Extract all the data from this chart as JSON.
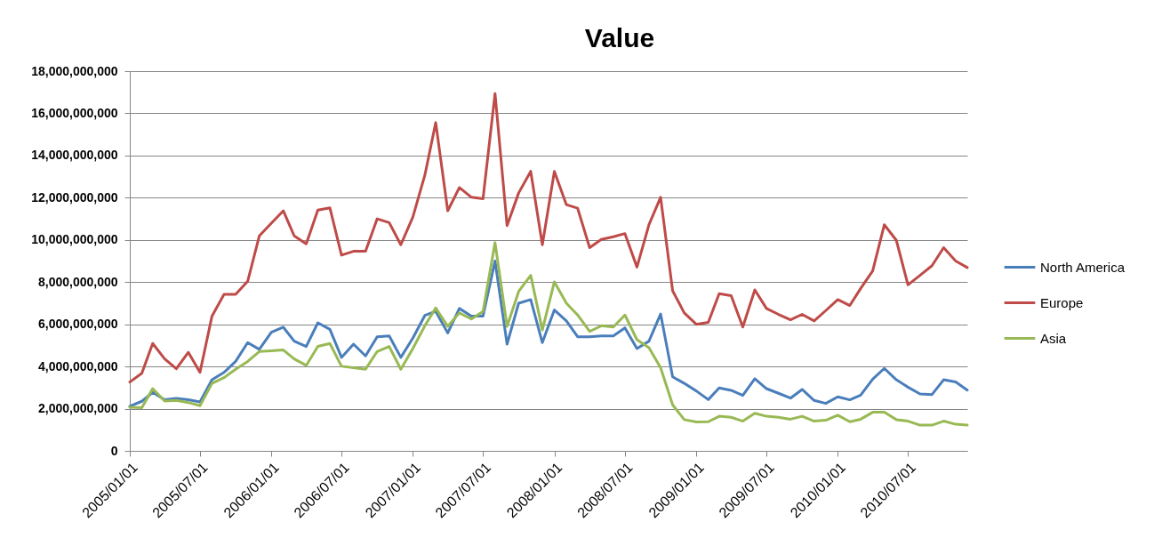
{
  "chart_data": {
    "type": "line",
    "title": "Value",
    "x": [
      "2005-01",
      "2005-02",
      "2005-03",
      "2005-04",
      "2005-05",
      "2005-06",
      "2005-07",
      "2005-08",
      "2005-09",
      "2005-10",
      "2005-11",
      "2005-12",
      "2006-01",
      "2006-02",
      "2006-03",
      "2006-04",
      "2006-05",
      "2006-06",
      "2006-07",
      "2006-08",
      "2006-09",
      "2006-10",
      "2006-11",
      "2006-12",
      "2007-01",
      "2007-02",
      "2007-03",
      "2007-04",
      "2007-05",
      "2007-06",
      "2007-07",
      "2007-08",
      "2007-09",
      "2007-10",
      "2007-11",
      "2007-12",
      "2008-01",
      "2008-02",
      "2008-03",
      "2008-04",
      "2008-05",
      "2008-06",
      "2008-07",
      "2008-08",
      "2008-09",
      "2008-10",
      "2008-11",
      "2008-12",
      "2009-01",
      "2009-02",
      "2009-03",
      "2009-04",
      "2009-05",
      "2009-06",
      "2009-07",
      "2009-08",
      "2009-09",
      "2009-10",
      "2009-11",
      "2009-12",
      "2010-01",
      "2010-02",
      "2010-03",
      "2010-04",
      "2010-05",
      "2010-06",
      "2010-07",
      "2010-08",
      "2010-09",
      "2010-10",
      "2010-11",
      "2010-12"
    ],
    "xlim": [
      "2005-01-01",
      "2010-12-01"
    ],
    "xticks": [
      {
        "value": "2005-01-01",
        "label": "2005/01/01"
      },
      {
        "value": "2005-07-01",
        "label": "2005/07/01"
      },
      {
        "value": "2006-01-01",
        "label": "2006/01/01"
      },
      {
        "value": "2006-07-01",
        "label": "2006/07/01"
      },
      {
        "value": "2007-01-01",
        "label": "2007/01/01"
      },
      {
        "value": "2007-07-01",
        "label": "2007/07/01"
      },
      {
        "value": "2008-01-01",
        "label": "2008/01/01"
      },
      {
        "value": "2008-07-01",
        "label": "2008/07/01"
      },
      {
        "value": "2009-01-01",
        "label": "2009/01/01"
      },
      {
        "value": "2009-07-01",
        "label": "2009/07/01"
      },
      {
        "value": "2010-01-01",
        "label": "2010/01/01"
      },
      {
        "value": "2010-07-01",
        "label": "2010/07/01"
      }
    ],
    "ylim": [
      0,
      18000000000
    ],
    "yticks": [
      0,
      {
        "value": 2000000000,
        "label": "2,000,000,000"
      },
      {
        "value": 4000000000,
        "label": "4,000,000,000"
      },
      {
        "value": 6000000000,
        "label": "6,000,000,000"
      },
      {
        "value": 8000000000,
        "label": "8,000,000,000"
      },
      {
        "value": 10000000000,
        "label": "10,000,000,000"
      },
      {
        "value": 12000000000,
        "label": "12,000,000,000"
      },
      {
        "value": 14000000000,
        "label": "14,000,000,000"
      },
      {
        "value": 16000000000,
        "label": "16,000,000,000"
      },
      {
        "value": 18000000000,
        "label": "18,000,000,000"
      }
    ],
    "grid": "y",
    "legend": "right",
    "series": [
      {
        "name": "North America",
        "color": "#4a7ebb",
        "values": [
          2110000000.0,
          2350000000.0,
          2770000000.0,
          2420000000.0,
          2490000000.0,
          2420000000.0,
          2320000000.0,
          3370000000.0,
          3720000000.0,
          4240000000.0,
          5130000000.0,
          4810000000.0,
          5620000000.0,
          5860000000.0,
          5200000000.0,
          4950000000.0,
          6070000000.0,
          5760000000.0,
          4430000000.0,
          5060000000.0,
          4500000000.0,
          5410000000.0,
          5450000000.0,
          4430000000.0,
          5340000000.0,
          6420000000.0,
          6610000000.0,
          5590000000.0,
          6750000000.0,
          6390000000.0,
          6390000000.0,
          9000000000.0,
          5060000000.0,
          7000000000.0,
          7170000000.0,
          5130000000.0,
          6680000000.0,
          6160000000.0,
          5410000000.0,
          5410000000.0,
          5450000000.0,
          5450000000.0,
          5830000000.0,
          4850000000.0,
          5200000000.0,
          6490000000.0,
          3510000000.0,
          3200000000.0,
          2840000000.0,
          2430000000.0,
          2980000000.0,
          2870000000.0,
          2630000000.0,
          3420000000.0,
          2950000000.0,
          2730000000.0,
          2500000000.0,
          2910000000.0,
          2390000000.0,
          2250000000.0,
          2560000000.0,
          2420000000.0,
          2640000000.0,
          3400000000.0,
          3910000000.0,
          3370000000.0,
          3020000000.0,
          2700000000.0,
          2670000000.0,
          3370000000.0,
          3270000000.0,
          2880000000.0
        ]
      },
      {
        "name": "Europe",
        "color": "#be4b48",
        "values": [
          3260000000.0,
          3680000000.0,
          5090000000.0,
          4360000000.0,
          3890000000.0,
          4670000000.0,
          3720000000.0,
          6390000000.0,
          7420000000.0,
          7420000000.0,
          8040000000.0,
          10190000000.0,
          10790000000.0,
          11380000000.0,
          10190000000.0,
          9810000000.0,
          11410000000.0,
          11520000000.0,
          9280000000.0,
          9460000000.0,
          9460000000.0,
          11000000000.0,
          10820000000.0,
          9770000000.0,
          11080000000.0,
          13070000000.0,
          15560000000.0,
          11380000000.0,
          12480000000.0,
          12020000000.0,
          11950000000.0,
          16940000000.0,
          10680000000.0,
          12230000000.0,
          13250000000.0,
          9770000000.0,
          13250000000.0,
          11670000000.0,
          11500000000.0,
          9630000000.0,
          10020000000.0,
          10150000000.0,
          10300000000.0,
          8710000000.0,
          10720000000.0,
          12020000000.0,
          7590000000.0,
          6540000000.0,
          6000000000.0,
          6090000000.0,
          7450000000.0,
          7360000000.0,
          5870000000.0,
          7630000000.0,
          6750000000.0,
          6470000000.0,
          6210000000.0,
          6470000000.0,
          6160000000.0,
          6650000000.0,
          7170000000.0,
          6890000000.0,
          7700000000.0,
          8530000000.0,
          10720000000.0,
          9980000000.0,
          7870000000.0,
          8320000000.0,
          8780000000.0,
          9630000000.0,
          9000000000.0,
          8690000000.0
        ]
      },
      {
        "name": "Asia",
        "color": "#98b954",
        "values": [
          2070000000.0,
          2040000000.0,
          2950000000.0,
          2360000000.0,
          2390000000.0,
          2290000000.0,
          2140000000.0,
          3200000000.0,
          3470000000.0,
          3870000000.0,
          4240000000.0,
          4710000000.0,
          4740000000.0,
          4780000000.0,
          4360000000.0,
          4050000000.0,
          4950000000.0,
          5090000000.0,
          4010000000.0,
          3940000000.0,
          3870000000.0,
          4710000000.0,
          4950000000.0,
          3870000000.0,
          4850000000.0,
          5930000000.0,
          6770000000.0,
          5900000000.0,
          6540000000.0,
          6250000000.0,
          6610000000.0,
          9870000000.0,
          5900000000.0,
          7560000000.0,
          8320000000.0,
          5730000000.0,
          8010000000.0,
          7000000000.0,
          6440000000.0,
          5660000000.0,
          5930000000.0,
          5870000000.0,
          6440000000.0,
          5270000000.0,
          4890000000.0,
          3940000000.0,
          2180000000.0,
          1480000000.0,
          1370000000.0,
          1380000000.0,
          1640000000.0,
          1590000000.0,
          1410000000.0,
          1780000000.0,
          1640000000.0,
          1590000000.0,
          1500000000.0,
          1640000000.0,
          1410000000.0,
          1450000000.0,
          1690000000.0,
          1380000000.0,
          1500000000.0,
          1830000000.0,
          1830000000.0,
          1480000000.0,
          1410000000.0,
          1220000000.0,
          1220000000.0,
          1410000000.0,
          1260000000.0,
          1220000000.0
        ]
      }
    ]
  }
}
